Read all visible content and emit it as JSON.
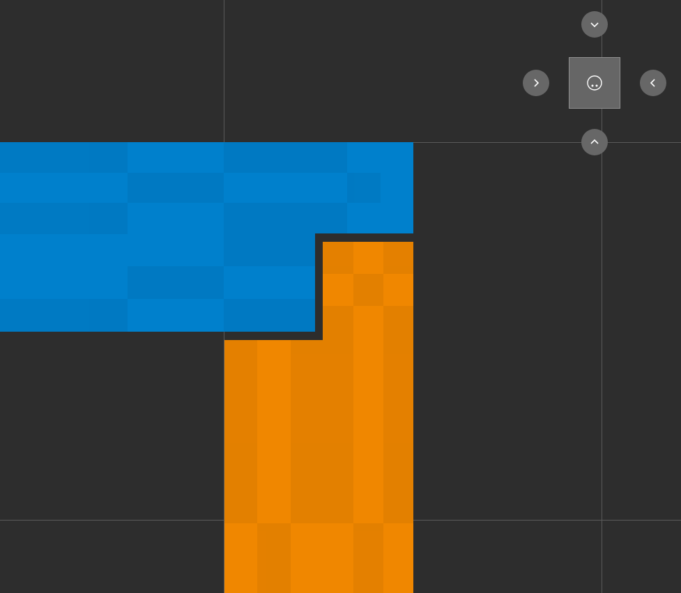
{
  "canvas": {
    "background": "#2d2d2d",
    "guide_color": "#5a5a5a"
  },
  "shapes": {
    "blue": {
      "color": "#0080cc",
      "shade": "#0079c2"
    },
    "orange": {
      "color": "#f08700",
      "shade": "#e38000"
    }
  },
  "dock_navigator": {
    "up": {
      "icon": "chevron-down-icon"
    },
    "left": {
      "icon": "chevron-right-icon"
    },
    "center": {
      "icon": "circle-dots-icon"
    },
    "right": {
      "icon": "chevron-left-icon"
    },
    "down": {
      "icon": "chevron-up-icon"
    }
  }
}
